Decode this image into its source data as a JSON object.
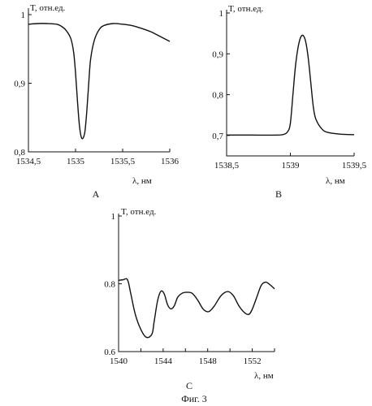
{
  "figure_caption": "Фиг. 3",
  "chart_data": [
    {
      "panel": "A",
      "type": "line",
      "ylabel": "T, отн.ед.",
      "xlabel": "λ, нм",
      "xlim": [
        1534.5,
        1536
      ],
      "ylim": [
        0.8,
        1.0
      ],
      "x_tick_values": [
        1534.5,
        1535,
        1535.5,
        1536
      ],
      "x_tick_labels": [
        "1534,5",
        "1535",
        "1535,5",
        "1536"
      ],
      "y_tick_values": [
        0.8,
        0.9,
        1.0
      ],
      "y_tick_labels": [
        "0,8",
        "0,9",
        "1"
      ],
      "grid": false,
      "series": [
        {
          "x": [
            1534.5,
            1534.6,
            1534.7,
            1534.8,
            1534.85,
            1534.9,
            1534.95,
            1534.98,
            1535.0,
            1535.02,
            1535.04,
            1535.06,
            1535.08,
            1535.1,
            1535.12,
            1535.14,
            1535.16,
            1535.2,
            1535.25,
            1535.3,
            1535.4,
            1535.5,
            1535.6,
            1535.7,
            1535.8,
            1535.9,
            1536.0
          ],
          "y": [
            0.986,
            0.987,
            0.987,
            0.986,
            0.983,
            0.977,
            0.965,
            0.945,
            0.915,
            0.875,
            0.84,
            0.822,
            0.82,
            0.83,
            0.86,
            0.9,
            0.935,
            0.963,
            0.978,
            0.984,
            0.987,
            0.986,
            0.984,
            0.98,
            0.975,
            0.968,
            0.961
          ]
        }
      ]
    },
    {
      "panel": "B",
      "type": "line",
      "ylabel": "T, отн.ед.",
      "xlabel": "λ, нм",
      "xlim": [
        1538.5,
        1539.5
      ],
      "ylim": [
        0.65,
        1.0
      ],
      "x_tick_values": [
        1538.5,
        1539,
        1539.5
      ],
      "x_tick_labels": [
        "1538,5",
        "1539",
        "1539,5"
      ],
      "y_tick_values": [
        0.7,
        0.8,
        0.9,
        1.0
      ],
      "y_tick_labels": [
        "0,7",
        "0,8",
        "0,9",
        "1"
      ],
      "grid": false,
      "series": [
        {
          "x": [
            1538.5,
            1538.7,
            1538.9,
            1538.95,
            1538.98,
            1539.0,
            1539.02,
            1539.04,
            1539.06,
            1539.08,
            1539.1,
            1539.12,
            1539.14,
            1539.16,
            1539.18,
            1539.2,
            1539.25,
            1539.3,
            1539.4,
            1539.5
          ],
          "y": [
            0.701,
            0.701,
            0.701,
            0.703,
            0.71,
            0.73,
            0.8,
            0.87,
            0.915,
            0.94,
            0.945,
            0.93,
            0.89,
            0.83,
            0.77,
            0.74,
            0.715,
            0.707,
            0.703,
            0.702
          ]
        }
      ]
    },
    {
      "panel": "C",
      "type": "line",
      "ylabel": "T, отн.ед.",
      "xlabel": "λ, нм",
      "xlim": [
        1540,
        1554
      ],
      "ylim": [
        0.6,
        1.0
      ],
      "x_tick_values": [
        1540,
        1544,
        1548,
        1552
      ],
      "x_tick_labels": [
        "1540",
        "1544",
        "1548",
        "1552"
      ],
      "minor_x_tick_values": [
        1542,
        1546,
        1550,
        1554
      ],
      "y_tick_values": [
        0.6,
        0.8,
        1.0
      ],
      "y_tick_labels": [
        "0.6",
        "0.8",
        "1"
      ],
      "grid": false,
      "series": [
        {
          "x": [
            1540.0,
            1540.4,
            1540.8,
            1541.1,
            1541.5,
            1542.0,
            1542.5,
            1543.0,
            1543.2,
            1543.5,
            1543.8,
            1544.1,
            1544.4,
            1544.7,
            1545.0,
            1545.3,
            1545.7,
            1546.1,
            1546.6,
            1547.1,
            1547.6,
            1548.1,
            1548.6,
            1549.2,
            1549.8,
            1550.3,
            1550.8,
            1551.3,
            1551.7,
            1552.0,
            1552.4,
            1552.8,
            1553.2,
            1553.6,
            1554.0
          ],
          "y": [
            0.81,
            0.812,
            0.812,
            0.77,
            0.71,
            0.665,
            0.642,
            0.652,
            0.69,
            0.75,
            0.778,
            0.77,
            0.738,
            0.726,
            0.735,
            0.76,
            0.772,
            0.775,
            0.772,
            0.752,
            0.725,
            0.718,
            0.735,
            0.765,
            0.777,
            0.765,
            0.735,
            0.715,
            0.71,
            0.725,
            0.76,
            0.795,
            0.805,
            0.797,
            0.785
          ]
        }
      ]
    }
  ]
}
